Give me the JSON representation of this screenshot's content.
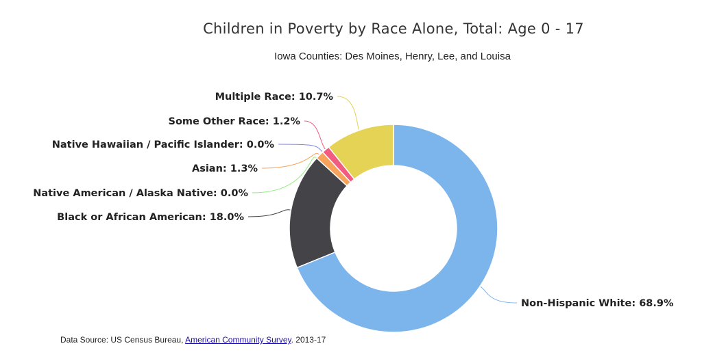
{
  "chart_data": {
    "type": "pie",
    "subtype": "donut",
    "title": "Children in Poverty by Race Alone, Total: Age 0 - 17",
    "subtitle": "Iowa Counties: Des Moines, Henry, Lee, and Louisa",
    "series": [
      {
        "name": "Non-Hispanic White",
        "value": 68.9,
        "label": "68.9%",
        "color": "#7cb5ec"
      },
      {
        "name": "Black or African American",
        "value": 18.0,
        "label": "18.0%",
        "color": "#434348"
      },
      {
        "name": "Native American / Alaska Native",
        "value": 0.0,
        "label": "0.0%",
        "color": "#90ed7d"
      },
      {
        "name": "Asian",
        "value": 1.3,
        "label": "1.3%",
        "color": "#f7a35c"
      },
      {
        "name": "Native Hawaiian / Pacific Islander",
        "value": 0.0,
        "label": "0.0%",
        "color": "#8085e9"
      },
      {
        "name": "Some Other Race",
        "value": 1.2,
        "label": "1.2%",
        "color": "#f15c80"
      },
      {
        "name": "Multiple Race",
        "value": 10.7,
        "label": "10.7%",
        "color": "#e4d354"
      }
    ]
  },
  "source": {
    "prefix": "Data Source: US Census Bureau, ",
    "link_text": "American Community Survey",
    "suffix": ". 2013-17"
  }
}
